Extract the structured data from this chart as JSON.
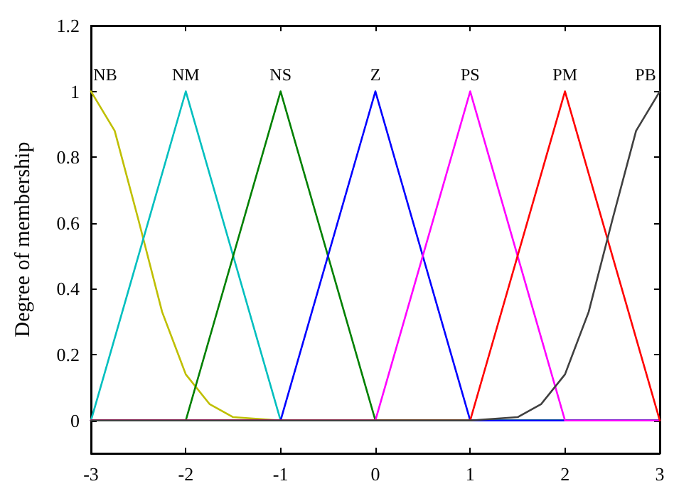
{
  "chart_data": {
    "type": "line",
    "ylabel": "Degree of membership",
    "xlim": [
      -3,
      3
    ],
    "xticks": [
      -3,
      -2,
      -1,
      0,
      1,
      2,
      3
    ],
    "ylim": [
      -0.1,
      1.2
    ],
    "yticks": [
      0,
      0.2,
      0.4,
      0.6,
      0.8,
      1,
      1.2
    ],
    "grid": false,
    "legend": false,
    "marker": "none",
    "line_style": "solid",
    "series": [
      {
        "name": "NB",
        "color": "#bfbf00",
        "x": [
          -3,
          -2.75,
          -2.5,
          -2.25,
          -2,
          -1.75,
          -1.5,
          -1,
          3
        ],
        "values": [
          1,
          0.88,
          0.61,
          0.33,
          0.14,
          0.05,
          0.01,
          0,
          0
        ]
      },
      {
        "name": "NM",
        "color": "#00bfbf",
        "x": [
          -3,
          -2,
          -1,
          3
        ],
        "values": [
          0,
          1,
          0,
          0
        ]
      },
      {
        "name": "NS",
        "color": "#008000",
        "x": [
          -3,
          -2,
          -1,
          0,
          3
        ],
        "values": [
          0,
          0,
          1,
          0,
          0
        ]
      },
      {
        "name": "Z",
        "color": "#0000ff",
        "x": [
          -3,
          -1,
          0,
          1,
          3
        ],
        "values": [
          0,
          0,
          1,
          0,
          0
        ]
      },
      {
        "name": "PS",
        "color": "#ff00ff",
        "x": [
          -3,
          0,
          1,
          2,
          3
        ],
        "values": [
          0,
          0,
          1,
          0,
          0
        ]
      },
      {
        "name": "PM",
        "color": "#ff0000",
        "x": [
          -3,
          1,
          2,
          3
        ],
        "values": [
          0,
          0,
          1,
          0
        ]
      },
      {
        "name": "PB",
        "color": "#404040",
        "x": [
          -3,
          1,
          1.5,
          1.75,
          2,
          2.25,
          2.5,
          2.75,
          3
        ],
        "values": [
          0,
          0,
          0.01,
          0.05,
          0.14,
          0.33,
          0.61,
          0.88,
          1
        ]
      }
    ]
  }
}
